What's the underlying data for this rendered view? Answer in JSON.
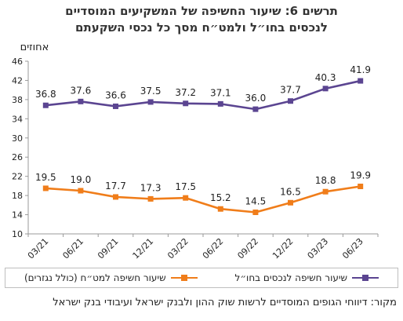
{
  "title_line1": "תרשים 6: שיעור החשיפה של המשקיעים המוסדיים",
  "title_line2": "לנכסים בחו״ל ולמט״ח מסך כל נכסי השקעתם",
  "source": "מקור: דיווחי הגופים המוסדיים לרשות שוק ההון ולבנק ישראל ועיבודי בנק ישראל",
  "chart_data": {
    "type": "line",
    "ylabel": "אחוזים",
    "ylim": [
      10,
      46
    ],
    "yticks": [
      10,
      14,
      18,
      22,
      26,
      30,
      34,
      38,
      42,
      46
    ],
    "grid": false,
    "legend_position": "bottom",
    "categories": [
      "03/21",
      "06/21",
      "09/21",
      "12/21",
      "03/22",
      "06/22",
      "09/22",
      "12/22",
      "03/23",
      "06/23"
    ],
    "series": [
      {
        "name": "שיעור חשיפה לנכסים בחו״ל",
        "color": "#5b4591",
        "values": [
          36.8,
          37.6,
          36.6,
          37.5,
          37.2,
          37.1,
          36.0,
          37.7,
          40.3,
          41.9
        ],
        "labels": [
          "36.8",
          "37.6",
          "36.6",
          "37.5",
          "37.2",
          "37.1",
          "36.0",
          "37.7",
          "40.3",
          "41.9"
        ]
      },
      {
        "name": "שיעור חשיפה למט״ח (כולל נגזרים)",
        "color": "#f07d1a",
        "values": [
          19.5,
          19.0,
          17.7,
          17.3,
          17.5,
          15.2,
          14.5,
          16.5,
          18.8,
          19.9
        ],
        "labels": [
          "19.5",
          "19.0",
          "17.7",
          "17.3",
          "17.5",
          "15.2",
          "14.5",
          "16.5",
          "18.8",
          "19.9"
        ]
      }
    ]
  }
}
